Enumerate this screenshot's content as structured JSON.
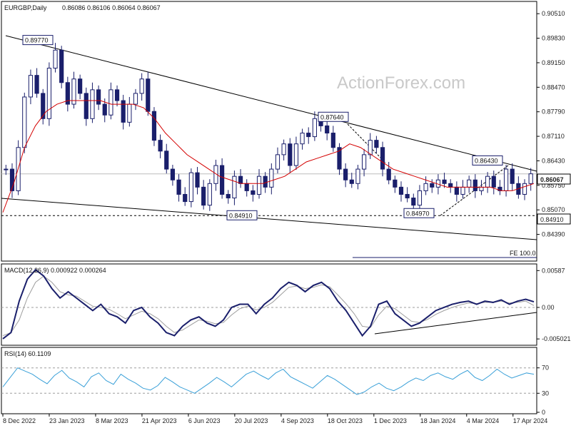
{
  "chart_data": [
    {
      "type": "candlestick",
      "title": "EURGBP,Daily",
      "ohlc_header": "0.86086 0.86106 0.86064 0.86067",
      "watermark": "ActionForex.com",
      "ylim": [
        0.8365,
        0.9085
      ],
      "y_ticks": [
        "0.90510",
        "0.89830",
        "0.89150",
        "0.88470",
        "0.87790",
        "0.87110",
        "0.86430",
        "0.85750",
        "0.85070",
        "0.84390"
      ],
      "current_price": {
        "value": 0.86067,
        "label": "0.86067"
      },
      "support": {
        "value": 0.8491,
        "label": "0.84910"
      },
      "price_labels": [
        {
          "label": "0.89770",
          "value": 0.8977
        },
        {
          "label": "0.87640",
          "value": 0.8764
        },
        {
          "label": "0.86430",
          "value": 0.8643
        },
        {
          "label": "0.84970",
          "value": 0.8497
        },
        {
          "label": "0.84910",
          "value": 0.8491
        }
      ],
      "fib_label": "FE 100.0",
      "x_dates": [
        "8 Dec 2022",
        "23 Jan 2023",
        "8 Mar 2023",
        "21 Apr 2023",
        "6 Jun 2023",
        "20 Jul 2023",
        "4 Sep 2023",
        "18 Oct 2023",
        "1 Dec 2023",
        "18 Jan 2024",
        "4 Mar 2024",
        "17 Apr 2024"
      ],
      "close_series": [
        0.862,
        0.856,
        0.868,
        0.882,
        0.888,
        0.883,
        0.876,
        0.89,
        0.895,
        0.886,
        0.88,
        0.887,
        0.883,
        0.876,
        0.884,
        0.88,
        0.877,
        0.884,
        0.881,
        0.875,
        0.88,
        0.883,
        0.887,
        0.878,
        0.87,
        0.867,
        0.862,
        0.859,
        0.855,
        0.853,
        0.861,
        0.857,
        0.852,
        0.858,
        0.863,
        0.855,
        0.854,
        0.86,
        0.858,
        0.856,
        0.855,
        0.86,
        0.857,
        0.862,
        0.866,
        0.869,
        0.863,
        0.869,
        0.872,
        0.871,
        0.876,
        0.874,
        0.872,
        0.868,
        0.862,
        0.859,
        0.858,
        0.862,
        0.866,
        0.87,
        0.868,
        0.862,
        0.859,
        0.857,
        0.855,
        0.854,
        0.852,
        0.856,
        0.858,
        0.857,
        0.859,
        0.858,
        0.857,
        0.855,
        0.857,
        0.859,
        0.856,
        0.857,
        0.86,
        0.857,
        0.856,
        0.862,
        0.858,
        0.855,
        0.858,
        0.8607
      ],
      "ma_series": [
        0.85,
        0.858,
        0.868,
        0.874,
        0.878,
        0.88,
        0.881,
        0.881,
        0.881,
        0.881,
        0.88,
        0.88,
        0.88,
        0.879,
        0.876,
        0.872,
        0.869,
        0.866,
        0.864,
        0.862,
        0.86,
        0.859,
        0.858,
        0.858,
        0.858,
        0.859,
        0.86,
        0.862,
        0.864,
        0.865,
        0.866,
        0.867,
        0.869,
        0.868,
        0.866,
        0.864,
        0.862,
        0.861,
        0.86,
        0.859,
        0.858,
        0.857,
        0.857,
        0.857,
        0.857,
        0.857,
        0.856,
        0.856,
        0.857,
        0.858
      ],
      "macd": {
        "title": "MACD(12,26,9) 0.000922 0.000264",
        "ylim": [
          -0.0058,
          0.0067
        ],
        "y_ticks": [
          "0.00587",
          "0.00",
          "-0.005021"
        ],
        "main": [
          -0.005,
          -0.004,
          0.001,
          0.0045,
          0.006,
          0.005,
          0.003,
          0.0015,
          0.0025,
          0.0015,
          0.0005,
          -0.0005,
          0.0005,
          -0.001,
          -0.0015,
          -0.0025,
          -0.0005,
          0.0,
          -0.0015,
          -0.0025,
          -0.004,
          -0.0045,
          -0.003,
          -0.002,
          -0.0015,
          -0.0025,
          -0.003,
          -0.002,
          0.0,
          0.0005,
          0.0005,
          -0.001,
          0.0005,
          0.0015,
          0.003,
          0.004,
          0.0035,
          0.0025,
          0.0035,
          0.004,
          0.003,
          0.001,
          -0.0005,
          -0.0025,
          -0.0045,
          -0.003,
          0.0005,
          0.001,
          -0.001,
          -0.002,
          -0.003,
          -0.0025,
          -0.0015,
          -0.0005,
          0.0,
          0.0005,
          0.0008,
          0.001,
          0.0005,
          0.001,
          0.0008,
          0.0012,
          0.0005,
          0.001,
          0.0013,
          0.0009
        ],
        "signal": [
          -0.0045,
          -0.004,
          -0.002,
          0.0015,
          0.004,
          0.005,
          0.004,
          0.0025,
          0.002,
          0.0018,
          0.001,
          0.0002,
          0.0,
          -0.0003,
          -0.001,
          -0.0018,
          -0.0012,
          -0.0006,
          -0.001,
          -0.0018,
          -0.003,
          -0.004,
          -0.0036,
          -0.0028,
          -0.002,
          -0.0022,
          -0.0026,
          -0.0024,
          -0.0012,
          -0.0002,
          0.0002,
          -0.0004,
          0.0,
          0.0008,
          0.002,
          0.0032,
          0.0034,
          0.003,
          0.0032,
          0.0036,
          0.0033,
          0.002,
          0.0006,
          -0.001,
          -0.003,
          -0.0032,
          -0.0012,
          0.0002,
          -0.0002,
          -0.0012,
          -0.0022,
          -0.0024,
          -0.0019,
          -0.0011,
          -0.0005,
          0.0,
          0.0004,
          0.0007,
          0.0006,
          0.0008,
          0.0008,
          0.001,
          0.0007,
          0.0008,
          0.001,
          0.0003
        ]
      },
      "rsi": {
        "title": "RSI(14) 60.1109",
        "ylim": [
          0,
          100
        ],
        "y_ticks": [
          "70",
          "30",
          "0"
        ],
        "levels": [
          70,
          30
        ],
        "series": [
          40,
          55,
          70,
          65,
          60,
          52,
          45,
          58,
          66,
          54,
          48,
          40,
          56,
          62,
          50,
          44,
          60,
          52,
          46,
          38,
          35,
          42,
          55,
          48,
          40,
          35,
          30,
          38,
          46,
          55,
          48,
          40,
          50,
          60,
          65,
          58,
          52,
          62,
          68,
          56,
          50,
          44,
          38,
          48,
          58,
          52,
          44,
          36,
          28,
          32,
          40,
          46,
          38,
          34,
          40,
          48,
          54,
          50,
          58,
          62,
          56,
          52,
          60,
          66,
          55,
          50,
          58,
          68,
          60,
          54,
          58,
          62,
          60
        ]
      },
      "colors": {
        "candle": "#1a1f6b",
        "ma": "#d40000",
        "macd": "#1a1f6b",
        "signal": "#9e9e9e",
        "trend": "#000000",
        "grid": "#bdbdbd"
      }
    }
  ]
}
